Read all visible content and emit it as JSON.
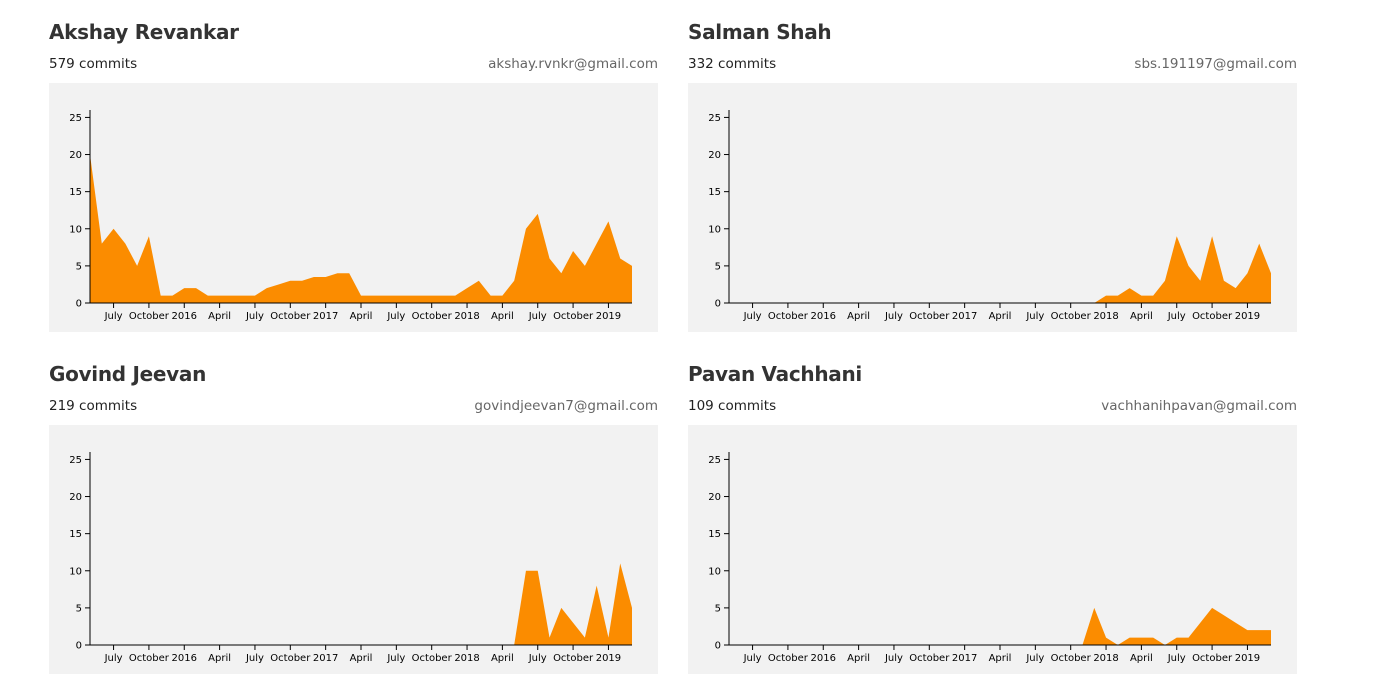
{
  "contributors": [
    {
      "name": "Akshay Revankar",
      "commits": "579 commits",
      "email": "akshay.rvnkr@gmail.com",
      "chart": {
        "type": "area",
        "color": "#fb8c00",
        "x": [
          "2015-05",
          "2015-06",
          "2015-07",
          "2015-08",
          "2015-09",
          "2015-10",
          "2015-11",
          "2015-12",
          "2016-01",
          "2016-02",
          "2016-03",
          "2016-04",
          "2016-05",
          "2016-06",
          "2016-07",
          "2016-08",
          "2016-09",
          "2016-10",
          "2016-11",
          "2016-12",
          "2017-01",
          "2017-02",
          "2017-03",
          "2017-04",
          "2017-05",
          "2017-06",
          "2017-07",
          "2017-08",
          "2017-09",
          "2017-10",
          "2017-11",
          "2017-12",
          "2018-01",
          "2018-02",
          "2018-03",
          "2018-04",
          "2018-05",
          "2018-06",
          "2018-07",
          "2018-08",
          "2018-09",
          "2018-10",
          "2018-11",
          "2018-12",
          "2019-01",
          "2019-02",
          "2019-03"
        ],
        "values": [
          20,
          8,
          10,
          8,
          5,
          9,
          1,
          1,
          2,
          2,
          1,
          1,
          1,
          1,
          1,
          2,
          2.5,
          3,
          3,
          3.5,
          3.5,
          4,
          4,
          1,
          1,
          1,
          1,
          1,
          1,
          1,
          1,
          1,
          2,
          3,
          1,
          1,
          3,
          10,
          12,
          6,
          4,
          7,
          5,
          8,
          11,
          6,
          5
        ],
        "xlim": [
          "2015-05",
          "2019-03"
        ],
        "ylim": [
          0,
          26
        ],
        "yticks": [
          0,
          5,
          10,
          15,
          20,
          25
        ],
        "xticks": [
          {
            "value": "2015-07",
            "label": "July"
          },
          {
            "value": "2015-10",
            "label": "October"
          },
          {
            "value": "2016-01",
            "label": "2016"
          },
          {
            "value": "2016-04",
            "label": "April"
          },
          {
            "value": "2016-07",
            "label": "July"
          },
          {
            "value": "2016-10",
            "label": "October"
          },
          {
            "value": "2017-01",
            "label": "2017"
          },
          {
            "value": "2017-04",
            "label": "April"
          },
          {
            "value": "2017-07",
            "label": "July"
          },
          {
            "value": "2017-10",
            "label": "October"
          },
          {
            "value": "2018-01",
            "label": "2018"
          },
          {
            "value": "2018-04",
            "label": "April"
          },
          {
            "value": "2018-07",
            "label": "July"
          },
          {
            "value": "2018-10",
            "label": "October"
          },
          {
            "value": "2019-01",
            "label": "2019"
          }
        ]
      }
    },
    {
      "name": "Salman Shah",
      "commits": "332 commits",
      "email": "sbs.191197@gmail.com",
      "chart": {
        "type": "area",
        "color": "#fb8c00",
        "x": [
          "2015-05",
          "2015-06",
          "2015-07",
          "2015-08",
          "2015-09",
          "2015-10",
          "2015-11",
          "2015-12",
          "2016-01",
          "2016-02",
          "2016-03",
          "2016-04",
          "2016-05",
          "2016-06",
          "2016-07",
          "2016-08",
          "2016-09",
          "2016-10",
          "2016-11",
          "2016-12",
          "2017-01",
          "2017-02",
          "2017-03",
          "2017-04",
          "2017-05",
          "2017-06",
          "2017-07",
          "2017-08",
          "2017-09",
          "2017-10",
          "2017-11",
          "2017-12",
          "2018-01",
          "2018-02",
          "2018-03",
          "2018-04",
          "2018-05",
          "2018-06",
          "2018-07",
          "2018-08",
          "2018-09",
          "2018-10",
          "2018-11",
          "2018-12",
          "2019-01",
          "2019-02",
          "2019-03"
        ],
        "values": [
          0,
          0,
          0,
          0,
          0,
          0,
          0,
          0,
          0,
          0,
          0,
          0,
          0,
          0,
          0,
          0,
          0,
          0,
          0,
          0,
          0,
          0,
          0,
          0,
          0,
          0,
          0,
          0,
          0,
          0,
          0,
          0,
          1,
          1,
          2,
          1,
          1,
          3,
          9,
          5,
          3,
          9,
          3,
          2,
          4,
          8,
          4
        ],
        "xlim": [
          "2015-05",
          "2019-03"
        ],
        "ylim": [
          0,
          26
        ],
        "yticks": [
          0,
          5,
          10,
          15,
          20,
          25
        ],
        "xticks": [
          {
            "value": "2015-07",
            "label": "July"
          },
          {
            "value": "2015-10",
            "label": "October"
          },
          {
            "value": "2016-01",
            "label": "2016"
          },
          {
            "value": "2016-04",
            "label": "April"
          },
          {
            "value": "2016-07",
            "label": "July"
          },
          {
            "value": "2016-10",
            "label": "October"
          },
          {
            "value": "2017-01",
            "label": "2017"
          },
          {
            "value": "2017-04",
            "label": "April"
          },
          {
            "value": "2017-07",
            "label": "July"
          },
          {
            "value": "2017-10",
            "label": "October"
          },
          {
            "value": "2018-01",
            "label": "2018"
          },
          {
            "value": "2018-04",
            "label": "April"
          },
          {
            "value": "2018-07",
            "label": "July"
          },
          {
            "value": "2018-10",
            "label": "October"
          },
          {
            "value": "2019-01",
            "label": "2019"
          }
        ]
      }
    },
    {
      "name": "Govind Jeevan",
      "commits": "219 commits",
      "email": "govindjeevan7@gmail.com",
      "chart": {
        "type": "area",
        "color": "#fb8c00",
        "x": [
          "2015-05",
          "2015-06",
          "2015-07",
          "2015-08",
          "2015-09",
          "2015-10",
          "2015-11",
          "2015-12",
          "2016-01",
          "2016-02",
          "2016-03",
          "2016-04",
          "2016-05",
          "2016-06",
          "2016-07",
          "2016-08",
          "2016-09",
          "2016-10",
          "2016-11",
          "2016-12",
          "2017-01",
          "2017-02",
          "2017-03",
          "2017-04",
          "2017-05",
          "2017-06",
          "2017-07",
          "2017-08",
          "2017-09",
          "2017-10",
          "2017-11",
          "2017-12",
          "2018-01",
          "2018-02",
          "2018-03",
          "2018-04",
          "2018-05",
          "2018-06",
          "2018-07",
          "2018-08",
          "2018-09",
          "2018-10",
          "2018-11",
          "2018-12",
          "2019-01",
          "2019-02",
          "2019-03"
        ],
        "values": [
          0,
          0,
          0,
          0,
          0,
          0,
          0,
          0,
          0,
          0,
          0,
          0,
          0,
          0,
          0,
          0,
          0,
          0,
          0,
          0,
          0,
          0,
          0,
          0,
          0,
          0,
          0,
          0,
          0,
          0,
          0,
          0,
          0,
          0,
          0,
          0,
          0,
          10,
          10,
          1,
          5,
          3,
          1,
          8,
          1,
          11,
          5
        ],
        "xlim": [
          "2015-05",
          "2019-03"
        ],
        "ylim": [
          0,
          26
        ],
        "yticks": [
          0,
          5,
          10,
          15,
          20,
          25
        ],
        "xticks": [
          {
            "value": "2015-07",
            "label": "July"
          },
          {
            "value": "2015-10",
            "label": "October"
          },
          {
            "value": "2016-01",
            "label": "2016"
          },
          {
            "value": "2016-04",
            "label": "April"
          },
          {
            "value": "2016-07",
            "label": "July"
          },
          {
            "value": "2016-10",
            "label": "October"
          },
          {
            "value": "2017-01",
            "label": "2017"
          },
          {
            "value": "2017-04",
            "label": "April"
          },
          {
            "value": "2017-07",
            "label": "July"
          },
          {
            "value": "2017-10",
            "label": "October"
          },
          {
            "value": "2018-01",
            "label": "2018"
          },
          {
            "value": "2018-04",
            "label": "April"
          },
          {
            "value": "2018-07",
            "label": "July"
          },
          {
            "value": "2018-10",
            "label": "October"
          },
          {
            "value": "2019-01",
            "label": "2019"
          }
        ]
      }
    },
    {
      "name": "Pavan Vachhani",
      "commits": "109 commits",
      "email": "vachhanihpavan@gmail.com",
      "chart": {
        "type": "area",
        "color": "#fb8c00",
        "x": [
          "2015-05",
          "2015-06",
          "2015-07",
          "2015-08",
          "2015-09",
          "2015-10",
          "2015-11",
          "2015-12",
          "2016-01",
          "2016-02",
          "2016-03",
          "2016-04",
          "2016-05",
          "2016-06",
          "2016-07",
          "2016-08",
          "2016-09",
          "2016-10",
          "2016-11",
          "2016-12",
          "2017-01",
          "2017-02",
          "2017-03",
          "2017-04",
          "2017-05",
          "2017-06",
          "2017-07",
          "2017-08",
          "2017-09",
          "2017-10",
          "2017-11",
          "2017-12",
          "2018-01",
          "2018-02",
          "2018-03",
          "2018-04",
          "2018-05",
          "2018-06",
          "2018-07",
          "2018-08",
          "2018-09",
          "2018-10",
          "2018-11",
          "2018-12",
          "2019-01",
          "2019-02",
          "2019-03"
        ],
        "values": [
          0,
          0,
          0,
          0,
          0,
          0,
          0,
          0,
          0,
          0,
          0,
          0,
          0,
          0,
          0,
          0,
          0,
          0,
          0,
          0,
          0,
          0,
          0,
          0,
          0,
          0,
          0,
          0,
          0,
          0,
          0,
          5,
          1,
          0,
          1,
          1,
          1,
          0,
          1,
          1,
          3,
          5,
          4,
          3,
          2,
          2,
          2
        ],
        "xlim": [
          "2015-05",
          "2019-03"
        ],
        "ylim": [
          0,
          26
        ],
        "yticks": [
          0,
          5,
          10,
          15,
          20,
          25
        ],
        "xticks": [
          {
            "value": "2015-07",
            "label": "July"
          },
          {
            "value": "2015-10",
            "label": "October"
          },
          {
            "value": "2016-01",
            "label": "2016"
          },
          {
            "value": "2016-04",
            "label": "April"
          },
          {
            "value": "2016-07",
            "label": "July"
          },
          {
            "value": "2016-10",
            "label": "October"
          },
          {
            "value": "2017-01",
            "label": "2017"
          },
          {
            "value": "2017-04",
            "label": "April"
          },
          {
            "value": "2017-07",
            "label": "July"
          },
          {
            "value": "2017-10",
            "label": "October"
          },
          {
            "value": "2018-01",
            "label": "2018"
          },
          {
            "value": "2018-04",
            "label": "April"
          },
          {
            "value": "2018-07",
            "label": "July"
          },
          {
            "value": "2018-10",
            "label": "October"
          },
          {
            "value": "2019-01",
            "label": "2019"
          }
        ]
      }
    }
  ]
}
